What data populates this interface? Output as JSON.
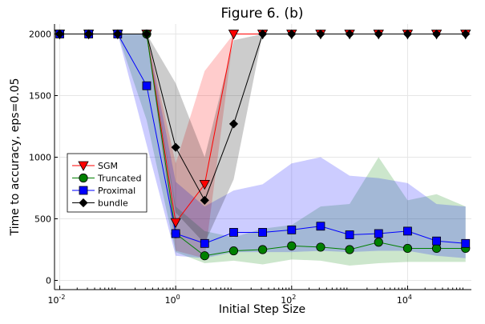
{
  "chart_data": {
    "type": "line",
    "title": "Figure 6. (b)",
    "xlabel": "Initial Step Size",
    "ylabel": "Time to accuracy, eps=0.05",
    "xscale": "log10",
    "xlim": [
      0.01,
      100000
    ],
    "ylim": [
      0,
      2000
    ],
    "xticks": [
      {
        "value": 0.01,
        "base": "10",
        "exp": "-2"
      },
      {
        "value": 1,
        "base": "10",
        "exp": "0"
      },
      {
        "value": 100,
        "base": "10",
        "exp": "2"
      },
      {
        "value": 10000,
        "base": "10",
        "exp": "4"
      }
    ],
    "yticks": [
      "0",
      "500",
      "1000",
      "1500",
      "2000"
    ],
    "grid": true,
    "legend_position": "left-middle",
    "x": [
      0.01,
      0.0316,
      0.1,
      0.316,
      1,
      3.16,
      10,
      31.6,
      100,
      316,
      1000,
      3160,
      10000,
      31600,
      100000
    ],
    "series": [
      {
        "name": "SGM",
        "color": "#ff0000",
        "marker": "triangle-down",
        "values": [
          2000,
          2000,
          2000,
          2000,
          470,
          780,
          2000,
          2000,
          2000,
          2000,
          2000,
          2000,
          2000,
          2000,
          2000
        ],
        "band_low": [
          2000,
          2000,
          2000,
          2000,
          240,
          180,
          2000,
          2000,
          2000,
          2000,
          2000,
          2000,
          2000,
          2000,
          2000
        ],
        "band_high": [
          2000,
          2000,
          2000,
          2000,
          950,
          1700,
          2000,
          2000,
          2000,
          2000,
          2000,
          2000,
          2000,
          2000,
          2000
        ]
      },
      {
        "name": "Truncated",
        "color": "#008000",
        "marker": "circle",
        "values": [
          2000,
          2000,
          2000,
          2000,
          380,
          200,
          240,
          250,
          280,
          270,
          250,
          310,
          260,
          260,
          260
        ],
        "band_low": [
          2000,
          2000,
          2000,
          1300,
          230,
          140,
          160,
          130,
          170,
          160,
          120,
          140,
          150,
          150,
          150
        ],
        "band_high": [
          2000,
          2000,
          2000,
          2000,
          600,
          400,
          350,
          420,
          450,
          600,
          620,
          1000,
          650,
          700,
          600
        ]
      },
      {
        "name": "Proximal",
        "color": "#0000ff",
        "marker": "square",
        "values": [
          2000,
          2000,
          2000,
          1580,
          380,
          300,
          390,
          390,
          410,
          440,
          370,
          380,
          400,
          320,
          300
        ],
        "band_low": [
          2000,
          2000,
          2000,
          1100,
          200,
          180,
          230,
          230,
          230,
          240,
          230,
          240,
          240,
          200,
          180
        ],
        "band_high": [
          2000,
          2000,
          2000,
          2000,
          800,
          600,
          730,
          780,
          950,
          1000,
          850,
          830,
          790,
          620,
          600
        ]
      },
      {
        "name": "bundle",
        "color": "#000000",
        "marker": "diamond",
        "values": [
          2000,
          2000,
          2000,
          2000,
          1080,
          650,
          1270,
          2000,
          2000,
          2000,
          2000,
          2000,
          2000,
          2000,
          2000
        ],
        "band_low": [
          2000,
          2000,
          2000,
          2000,
          550,
          300,
          820,
          2000,
          2000,
          2000,
          2000,
          2000,
          2000,
          2000,
          2000
        ],
        "band_high": [
          2000,
          2000,
          2000,
          2000,
          1600,
          1000,
          1950,
          2000,
          2000,
          2000,
          2000,
          2000,
          2000,
          2000,
          2000
        ]
      }
    ]
  }
}
